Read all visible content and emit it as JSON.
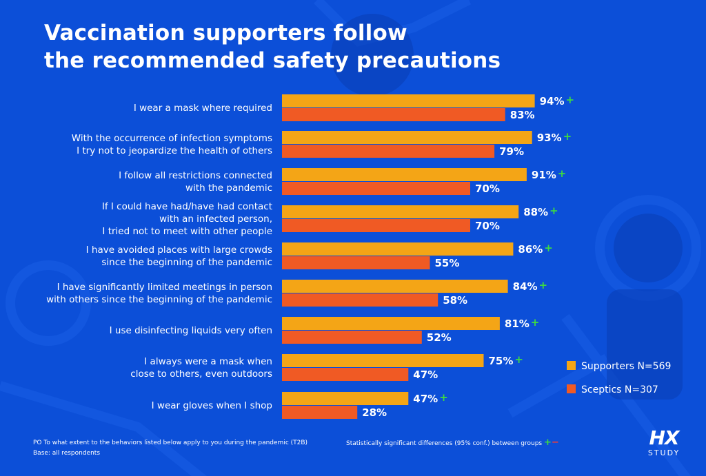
{
  "title_lines": [
    "Vaccination supporters follow",
    "the recommended safety precautions"
  ],
  "colors": {
    "background": "#0c4fd8",
    "background_dark": "#0a3fb8",
    "supporters": "#f4a516",
    "sceptics": "#f05a24",
    "text": "#ffffff",
    "significance_plus": "#3fdc3f",
    "significance_minus": "#ff3b2f"
  },
  "chart_data": {
    "type": "bar",
    "orientation": "horizontal",
    "categories": [
      [
        "I wear a mask where required"
      ],
      [
        "With the occurrence of infection symptoms",
        "I try not to jeopardize the health of others"
      ],
      [
        "I follow all restrictions connected",
        "with the pandemic"
      ],
      [
        "If I could have had/have had contact",
        "with an infected person,",
        "I tried not to meet with other people"
      ],
      [
        "I have avoided places with large crowds",
        "since the beginning of the pandemic"
      ],
      [
        "I have significantly limited meetings in person",
        "with others since the beginning of the pandemic"
      ],
      [
        "I use disinfecting liquids very often"
      ],
      [
        "I always were a mask when",
        "close to others, even outdoors"
      ],
      [
        "I wear gloves when I shop"
      ]
    ],
    "series": [
      {
        "name": "Supporters N=569",
        "values": [
          94,
          93,
          91,
          88,
          86,
          84,
          81,
          75,
          47
        ],
        "color": "#f4a516"
      },
      {
        "name": "Sceptics N=307",
        "values": [
          83,
          79,
          70,
          70,
          55,
          58,
          52,
          47,
          28
        ],
        "color": "#f05a24"
      }
    ],
    "value_labels": {
      "Supporters N=569": [
        "94%",
        "93%",
        "91%",
        "88%",
        "86%",
        "84%",
        "81%",
        "75%",
        "47%"
      ],
      "Sceptics N=307": [
        "83%",
        "79%",
        "70%",
        "70%",
        "55%",
        "58%",
        "52%",
        "47%",
        "28%"
      ]
    },
    "significance_marker": "+",
    "significance_series": "Supporters N=569",
    "xlim": [
      0,
      100
    ],
    "legend_position": "right",
    "grid": false
  },
  "legend": {
    "supporters": "Supporters N=569",
    "sceptics": "Sceptics N=307"
  },
  "footer": {
    "question": "PO To what extent to the behaviors listed below apply to you during the pandemic (T2B)",
    "base": "Base: all respondents",
    "significance_note": "Statistically significant differences (95% conf.) between groups",
    "plus": "+",
    "minus": "−"
  },
  "logo": {
    "mark": "HX",
    "word": "STUDY"
  }
}
